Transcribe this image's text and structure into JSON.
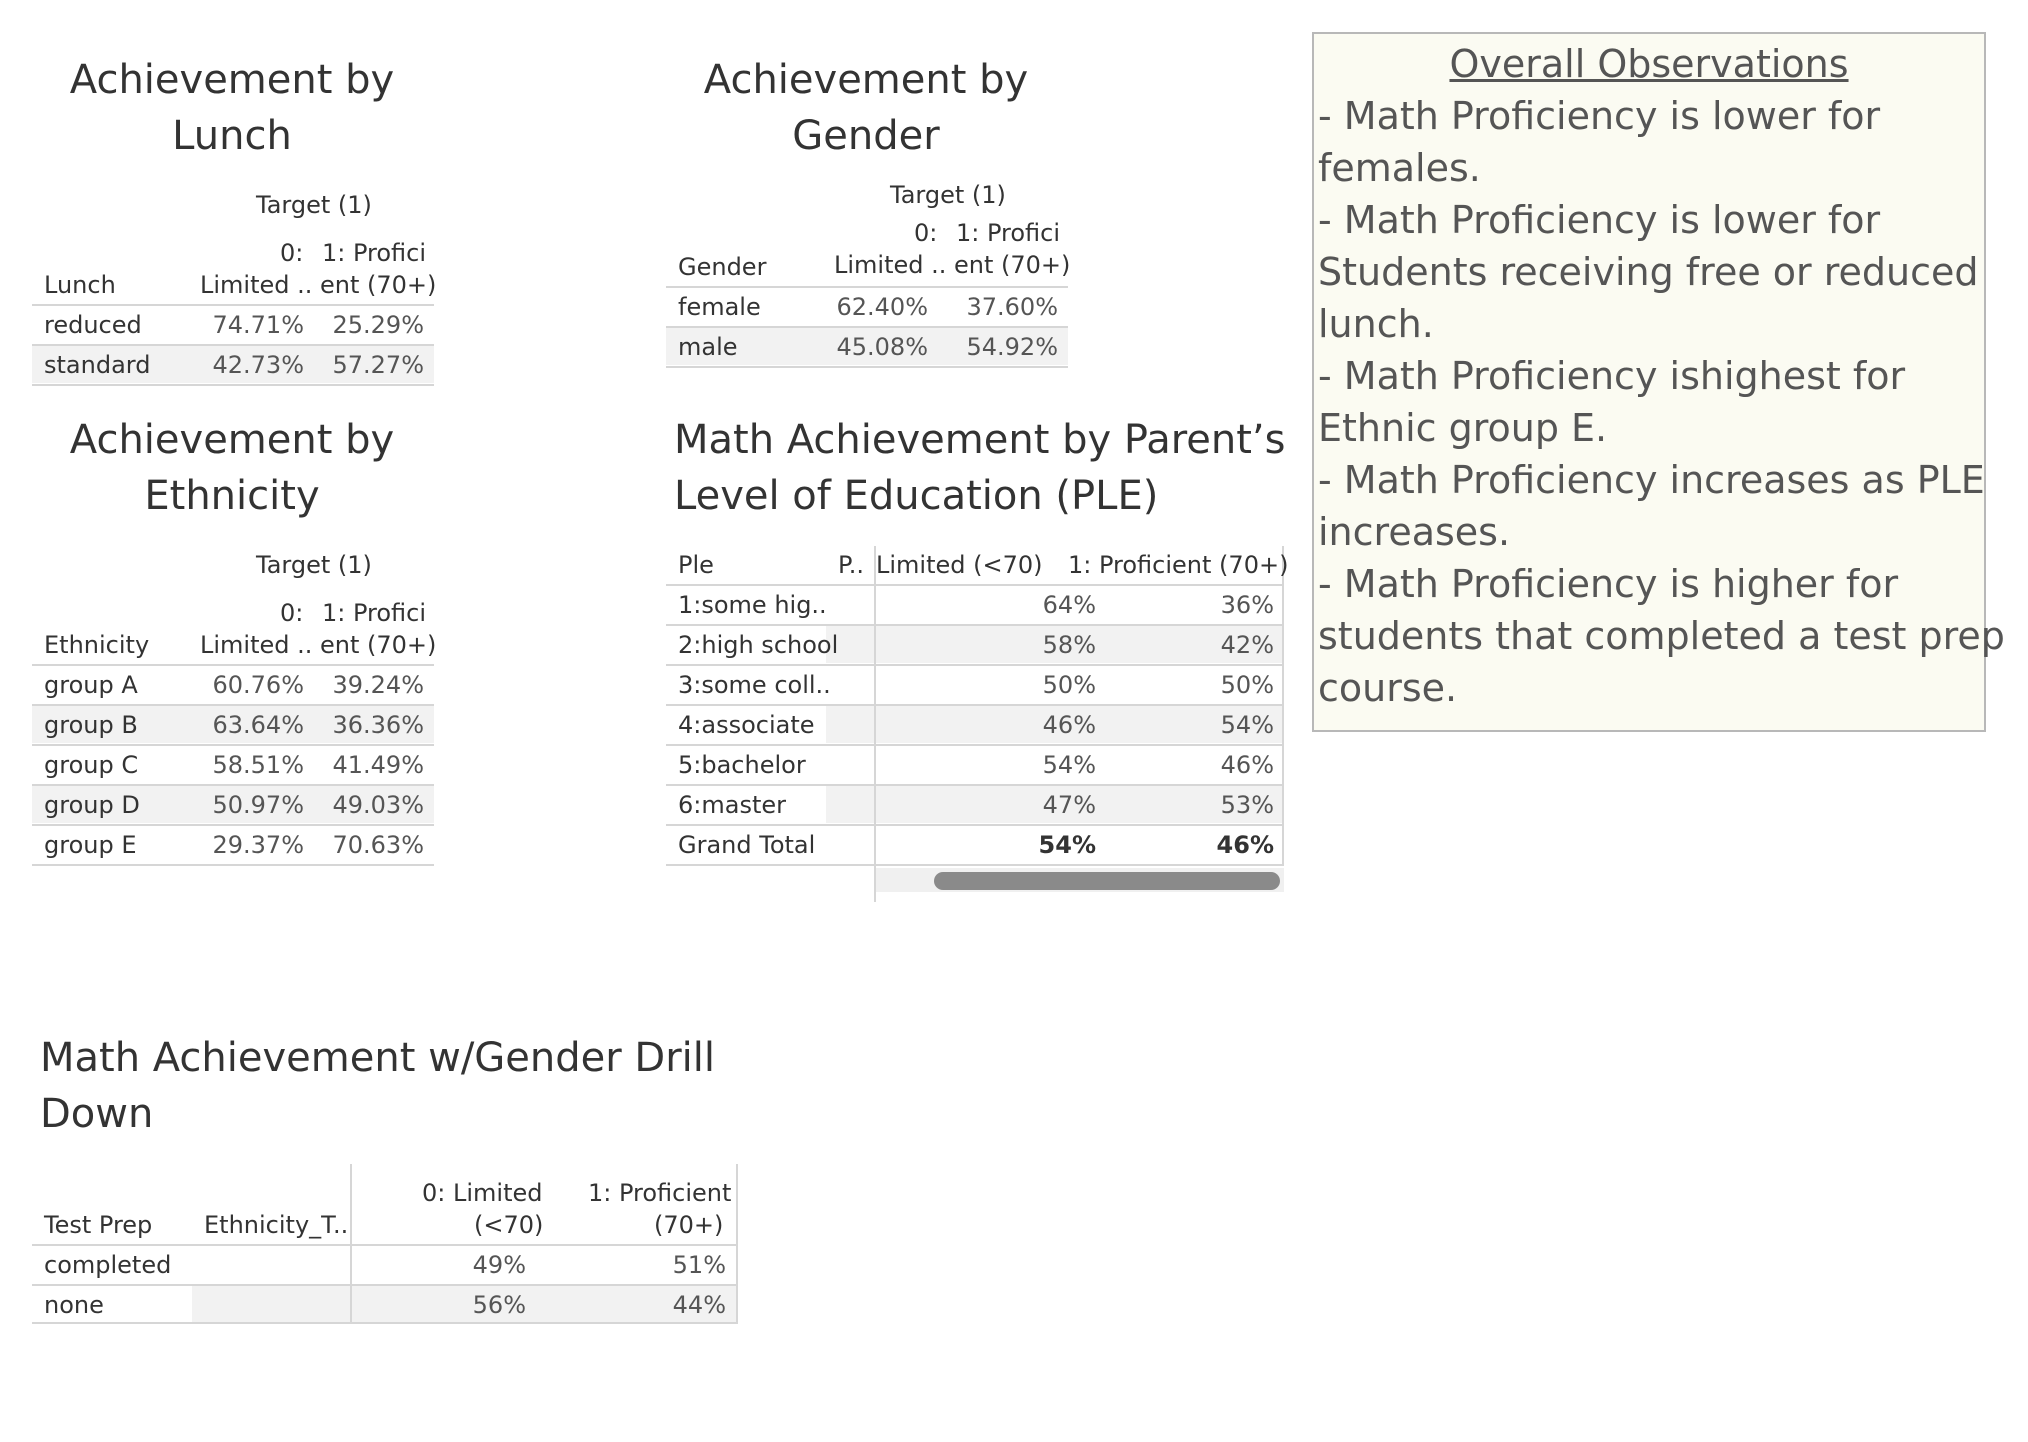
{
  "lunch": {
    "title_l1": "Achievement by",
    "title_l2": "Lunch",
    "target": "Target (1)",
    "col_dim": "Lunch",
    "col0_l1": "0:",
    "col0_l2": "Limited ..",
    "col1_l1": "1: Profici",
    "col1_l2": "ent (70+)",
    "rows": [
      {
        "label": "reduced",
        "v0": "74.71%",
        "v1": "25.29%"
      },
      {
        "label": "standard",
        "v0": "42.73%",
        "v1": "57.27%"
      }
    ]
  },
  "gender": {
    "title_l1": "Achievement by",
    "title_l2": "Gender",
    "target": "Target (1)",
    "col_dim": "Gender",
    "col0_l1": "0:",
    "col0_l2": "Limited ..",
    "col1_l1": "1: Profici",
    "col1_l2": "ent (70+)",
    "rows": [
      {
        "label": "female",
        "v0": "62.40%",
        "v1": "37.60%"
      },
      {
        "label": "male",
        "v0": "45.08%",
        "v1": "54.92%"
      }
    ]
  },
  "ethnicity": {
    "title_l1": "Achievement by",
    "title_l2": "Ethnicity",
    "target": "Target (1)",
    "col_dim": "Ethnicity",
    "col0_l1": "0:",
    "col0_l2": "Limited ..",
    "col1_l1": "1: Profici",
    "col1_l2": "ent (70+)",
    "rows": [
      {
        "label": "group A",
        "v0": "60.76%",
        "v1": "39.24%"
      },
      {
        "label": "group B",
        "v0": "63.64%",
        "v1": "36.36%"
      },
      {
        "label": "group C",
        "v0": "58.51%",
        "v1": "41.49%"
      },
      {
        "label": "group D",
        "v0": "50.97%",
        "v1": "49.03%"
      },
      {
        "label": "group E",
        "v0": "29.37%",
        "v1": "70.63%"
      }
    ]
  },
  "ple": {
    "title_l1": "Math Achievement by Parent’s",
    "title_l2": "Level of Education (PLE)",
    "col_dim": "Ple",
    "col_p": "P..",
    "col0": "Limited (<70)",
    "col1": "1: Proficient (70+)",
    "rows": [
      {
        "label": "1:some hig..",
        "v0": "64%",
        "v1": "36%"
      },
      {
        "label": "2:high school",
        "v0": "58%",
        "v1": "42%"
      },
      {
        "label": "3:some coll..",
        "v0": "50%",
        "v1": "50%"
      },
      {
        "label": "4:associate",
        "v0": "46%",
        "v1": "54%"
      },
      {
        "label": "5:bachelor",
        "v0": "54%",
        "v1": "46%"
      },
      {
        "label": "6:master",
        "v0": "47%",
        "v1": "53%"
      }
    ],
    "total": {
      "label": "Grand Total",
      "v0": "54%",
      "v1": "46%"
    }
  },
  "drill": {
    "title_l1": "Math Achievement w/Gender Drill",
    "title_l2": "Down",
    "col_dim": "Test Prep",
    "col_eth": "Ethnicity_T..",
    "col0_l1": "0: Limited",
    "col0_l2": "(<70)",
    "col1_l1": "1: Proficient",
    "col1_l2": "(70+)",
    "rows": [
      {
        "label": "completed",
        "v0": "49%",
        "v1": "51%"
      },
      {
        "label": "none",
        "v0": "56%",
        "v1": "44%"
      }
    ]
  },
  "observations": {
    "title": "Overall Observations",
    "lines": [
      "- Math Proficiency is lower for",
      "females.",
      "- Math Proficiency is lower for",
      "Students receiving free or reduced",
      "lunch.",
      "- Math Proficiency ishighest for",
      "Ethnic group E.",
      "- Math Proficiency increases as PLE",
      "increases.",
      "- Math Proficiency is higher for",
      "students that completed a test prep",
      "course."
    ]
  }
}
